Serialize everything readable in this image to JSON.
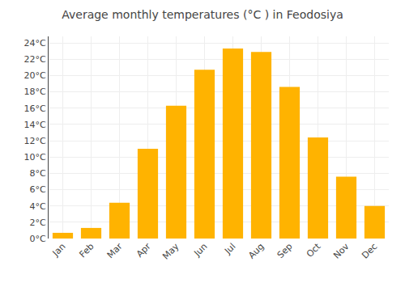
{
  "chart_data": {
    "type": "bar",
    "title": "Average monthly temperatures (°C ) in Feodosiya",
    "categories": [
      "Jan",
      "Feb",
      "Mar",
      "Apr",
      "May",
      "Jun",
      "Jul",
      "Aug",
      "Sep",
      "Oct",
      "Nov",
      "Dec"
    ],
    "values": [
      0.7,
      1.3,
      4.4,
      11.0,
      16.3,
      20.7,
      23.3,
      22.9,
      18.6,
      12.4,
      7.6,
      4.0
    ],
    "color": "#FFB300",
    "ylim": [
      0,
      24.8
    ],
    "yticks": [
      {
        "value": 0,
        "label": "0°C"
      },
      {
        "value": 2,
        "label": "2°C"
      },
      {
        "value": 4,
        "label": "4°C"
      },
      {
        "value": 6,
        "label": "6°C"
      },
      {
        "value": 8,
        "label": "8°C"
      },
      {
        "value": 10,
        "label": "10°C"
      },
      {
        "value": 12,
        "label": "12°C"
      },
      {
        "value": 14,
        "label": "14°C"
      },
      {
        "value": 16,
        "label": "16°C"
      },
      {
        "value": 18,
        "label": "18°C"
      },
      {
        "value": 20,
        "label": "20°C"
      },
      {
        "value": 22,
        "label": "22°C"
      },
      {
        "value": 24,
        "label": "24°C"
      }
    ],
    "grid": true
  }
}
